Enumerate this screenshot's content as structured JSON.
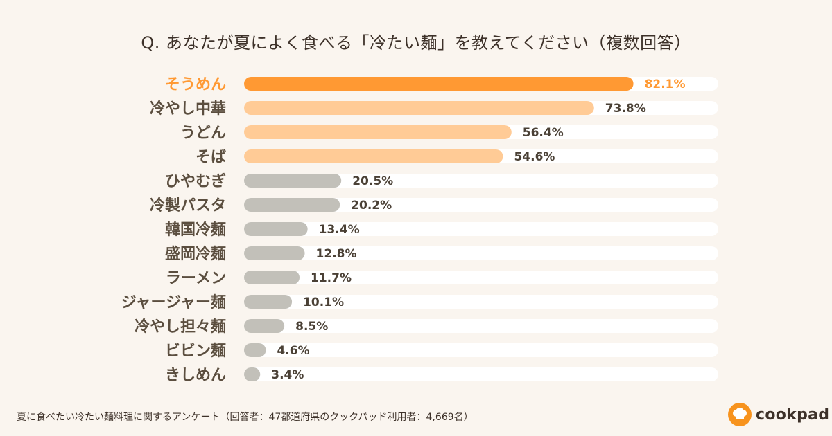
{
  "title": "Q. あなたが夏によく食べる「冷たい麺」を教えてください（複数回答）",
  "footnote": "夏に食べたい冷たい麺料理に関するアンケート（回答者：47都道府県のクックパッド利用者：4,669名）",
  "brand": {
    "name": "cookpad",
    "accent": "#f7931e"
  },
  "colors": {
    "highlight": "#ff9933",
    "top": "#ffcb96",
    "rest": "#c2c0b9",
    "track": "#ffffff",
    "label": "#5b4e3f",
    "highlight_label": "#ff9933",
    "value": "#4a4035"
  },
  "chart_data": {
    "type": "bar",
    "orientation": "horizontal",
    "unit": "%",
    "xlim": [
      0,
      100
    ],
    "categories": [
      "そうめん",
      "冷やし中華",
      "うどん",
      "そば",
      "ひやむぎ",
      "冷製パスタ",
      "韓国冷麺",
      "盛岡冷麺",
      "ラーメン",
      "ジャージャー麺",
      "冷やし担々麺",
      "ビビン麺",
      "きしめん"
    ],
    "values": [
      82.1,
      73.8,
      56.4,
      54.6,
      20.5,
      20.2,
      13.4,
      12.8,
      11.7,
      10.1,
      8.5,
      4.6,
      3.4
    ],
    "value_labels": [
      "82.1%",
      "73.8%",
      "56.4%",
      "54.6%",
      "20.5%",
      "20.2%",
      "13.4%",
      "12.8%",
      "11.7%",
      "10.1%",
      "8.5%",
      "4.6%",
      "3.4%"
    ],
    "highlight_index": 0,
    "top_group_count": 4
  }
}
